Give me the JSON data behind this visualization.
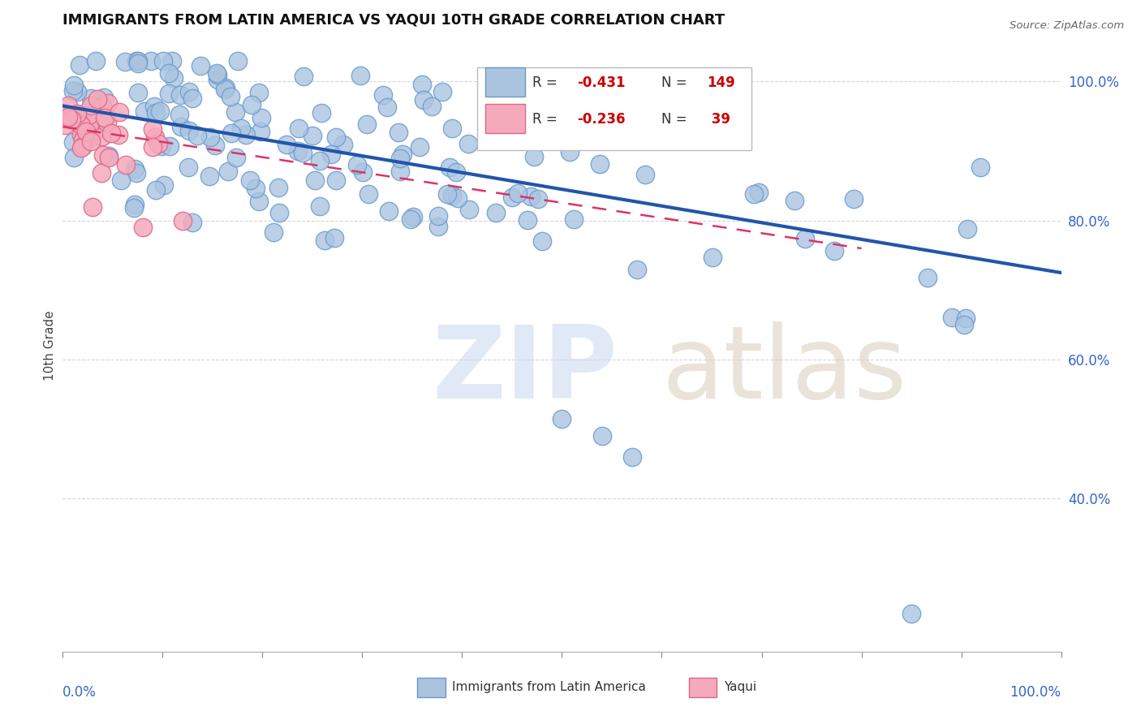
{
  "title": "IMMIGRANTS FROM LATIN AMERICA VS YAQUI 10TH GRADE CORRELATION CHART",
  "source_text": "Source: ZipAtlas.com",
  "ylabel": "10th Grade",
  "blue_color": "#aac4e0",
  "blue_edge_color": "#6699cc",
  "blue_line_color": "#2255aa",
  "pink_color": "#f5aabc",
  "pink_edge_color": "#dd6688",
  "pink_line_color": "#dd3366",
  "grid_color": "#cccccc",
  "right_tick_color": "#3366cc",
  "title_color": "#111111",
  "source_color": "#666666",
  "ylabel_color": "#444444",
  "xlabel_color": "#3366cc",
  "legend_r_color": "#cc0000",
  "legend_n_color": "#cc0000",
  "legend_label_color": "#333333",
  "watermark_zip_color": "#c8d8ee",
  "watermark_atlas_color": "#d8ccbb",
  "xlim": [
    0.0,
    1.0
  ],
  "ylim": [
    0.18,
    1.06
  ],
  "yticks": [
    0.4,
    0.6,
    0.8,
    1.0
  ],
  "ytick_labels": [
    "40.0%",
    "60.0%",
    "80.0%",
    "100.0%"
  ],
  "xticks": [
    0.0,
    0.1,
    0.2,
    0.3,
    0.4,
    0.5,
    0.6,
    0.7,
    0.8,
    0.9,
    1.0
  ],
  "blue_trend_x": [
    0.0,
    1.0
  ],
  "blue_trend_y": [
    0.965,
    0.725
  ],
  "pink_trend_x": [
    0.0,
    0.8
  ],
  "pink_trend_y": [
    0.935,
    0.76
  ],
  "legend_blue_r_val": "-0.431",
  "legend_blue_n_val": "149",
  "legend_pink_r_val": "-0.236",
  "legend_pink_n_val": " 39",
  "bottom_legend_blue_label": "Immigrants from Latin America",
  "bottom_legend_pink_label": "Yaqui"
}
